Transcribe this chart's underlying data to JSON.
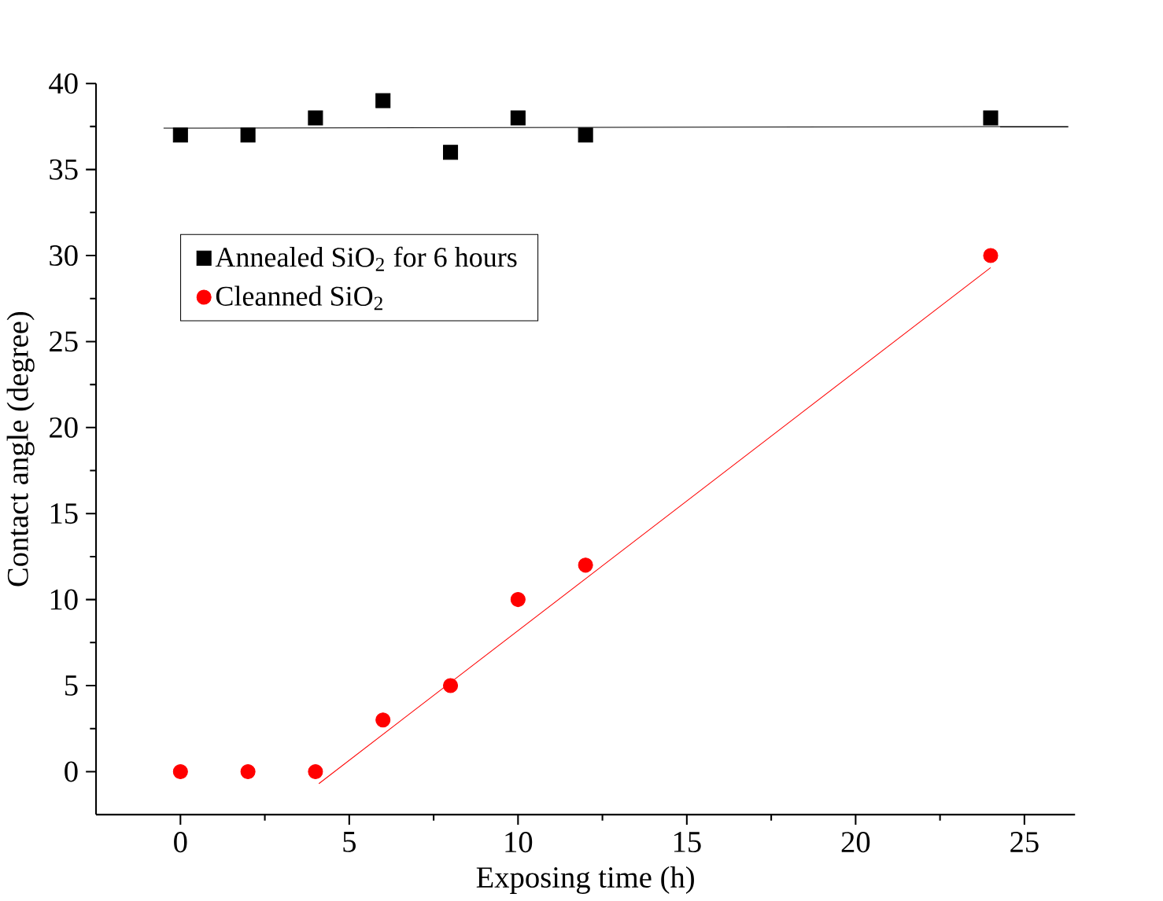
{
  "chart_data": {
    "type": "scatter",
    "xlabel": "Exposing time (h)",
    "ylabel": "Contact angle (degree)",
    "xlim": [
      -2.5,
      26.5
    ],
    "ylim": [
      -2.5,
      40
    ],
    "xticks": [
      0,
      5,
      10,
      15,
      20,
      25
    ],
    "yticks": [
      0,
      5,
      10,
      15,
      20,
      25,
      30,
      35,
      40
    ],
    "legend": "top left",
    "grid": false,
    "series": [
      {
        "name": "Annealed SiO$_{2}$ for 6 hours",
        "color": "#000000",
        "marker": "square",
        "x": [
          0,
          2,
          4,
          6,
          8,
          10,
          12,
          24
        ],
        "values": [
          37,
          37,
          38,
          39,
          36,
          38,
          37,
          38
        ]
      },
      {
        "name": "Cleanned SiO$_{2}$",
        "color": "#ff0000",
        "marker": "circle",
        "x": [
          0,
          2,
          4,
          6,
          8,
          10,
          12,
          24
        ],
        "values": [
          0,
          0,
          0,
          3,
          5,
          10,
          12,
          30
        ]
      },
      {
        "type": "line",
        "color": "#000000",
        "marker": "none",
        "x": [
          -0.5,
          26.3
        ],
        "values": [
          37.4,
          37.5
        ]
      },
      {
        "type": "line",
        "color": "#ff0000",
        "marker": "none",
        "x": [
          4.1,
          24
        ],
        "values": [
          -0.7,
          29.3
        ]
      }
    ]
  }
}
